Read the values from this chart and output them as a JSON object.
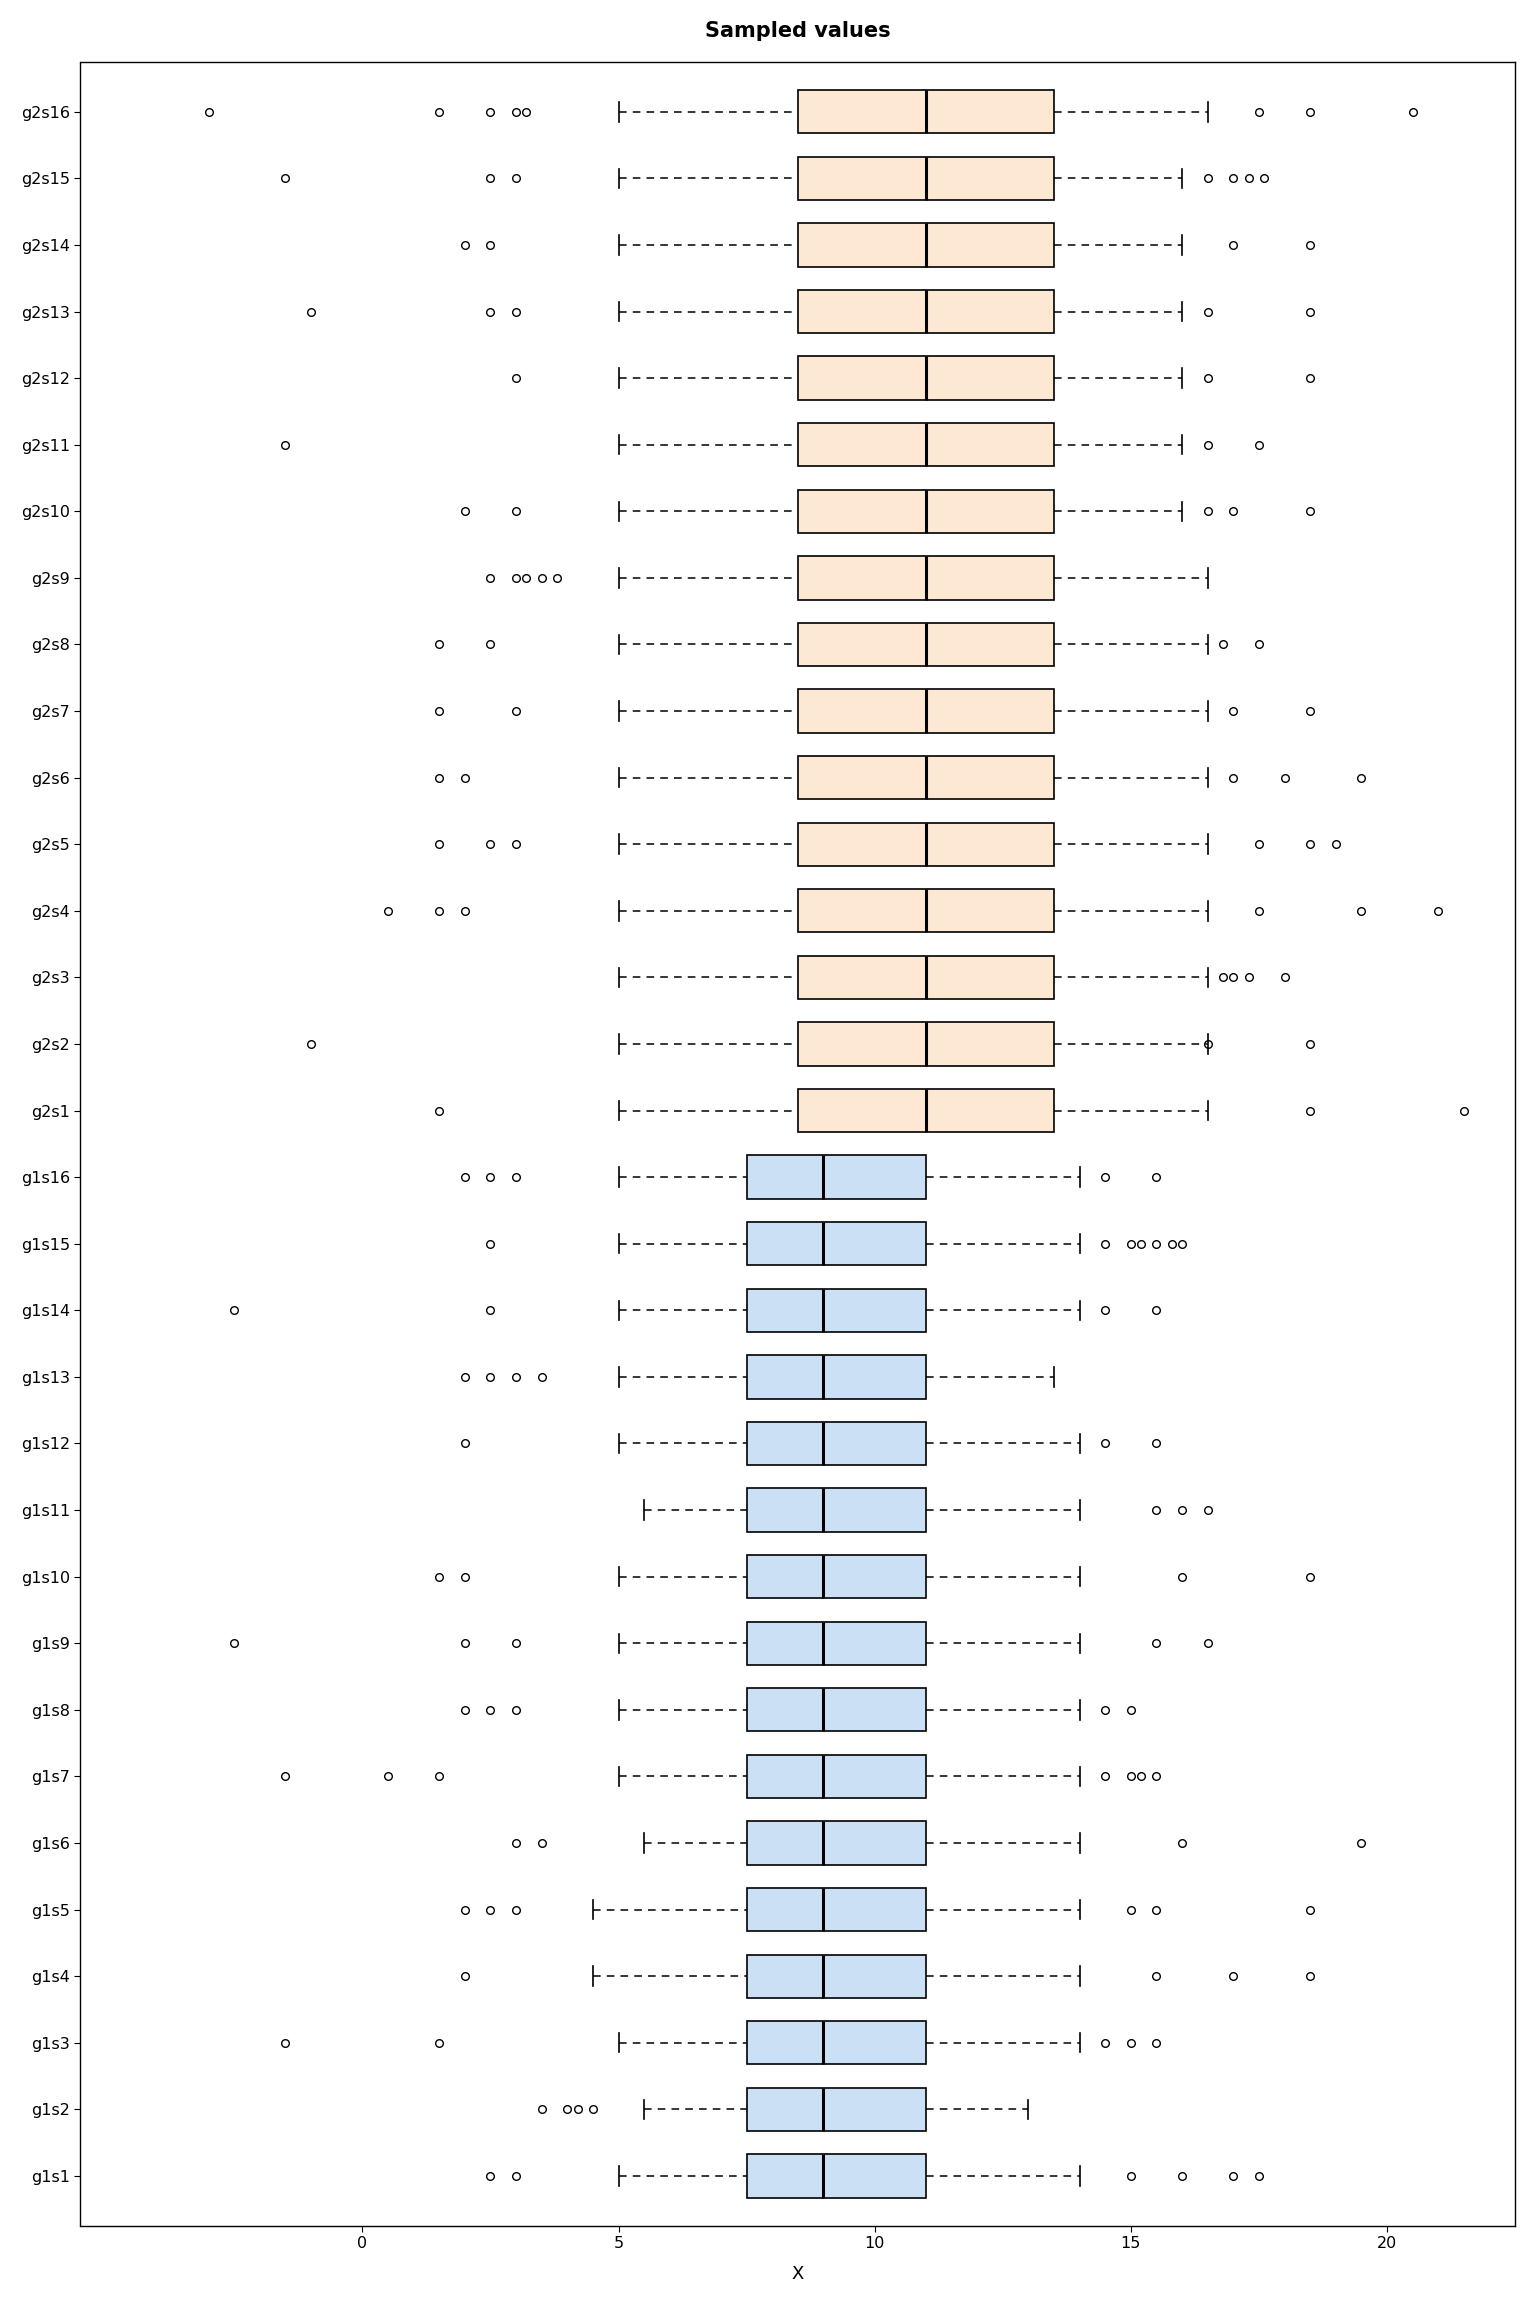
{
  "title": "Sampled values",
  "xlabel": "X",
  "background_color": "#ffffff",
  "g1_color": "#cce0f5",
  "g2_color": "#fde8d4",
  "edge_color": "#000000",
  "median_color": "#000000",
  "whisker_color": "#000000",
  "flier_color": "#000000",
  "xlim_left": -5.5,
  "xlim_right": 22.5,
  "xticks": [
    0,
    5,
    10,
    15,
    20
  ],
  "groups": [
    {
      "name": "g2s16",
      "q1": 8.5,
      "median": 11.0,
      "q3": 13.5,
      "whisker_low": 5.0,
      "whisker_high": 16.5,
      "outliers_lo": [
        -3.0,
        1.5,
        2.5,
        3.0,
        3.2
      ],
      "outliers_hi": [
        17.5,
        18.5,
        20.5
      ]
    },
    {
      "name": "g2s15",
      "q1": 8.5,
      "median": 11.0,
      "q3": 13.5,
      "whisker_low": 5.0,
      "whisker_high": 16.0,
      "outliers_lo": [
        -1.5,
        2.5,
        3.0
      ],
      "outliers_hi": [
        16.5,
        17.0,
        17.3,
        17.6
      ]
    },
    {
      "name": "g2s14",
      "q1": 8.5,
      "median": 11.0,
      "q3": 13.5,
      "whisker_low": 5.0,
      "whisker_high": 16.0,
      "outliers_lo": [
        2.0,
        2.5
      ],
      "outliers_hi": [
        17.0,
        18.5
      ]
    },
    {
      "name": "g2s13",
      "q1": 8.5,
      "median": 11.0,
      "q3": 13.5,
      "whisker_low": 5.0,
      "whisker_high": 16.0,
      "outliers_lo": [
        -1.0,
        2.5,
        3.0
      ],
      "outliers_hi": [
        16.5,
        18.5
      ]
    },
    {
      "name": "g2s12",
      "q1": 8.5,
      "median": 11.0,
      "q3": 13.5,
      "whisker_low": 5.0,
      "whisker_high": 16.0,
      "outliers_lo": [
        3.0
      ],
      "outliers_hi": [
        16.5,
        18.5
      ]
    },
    {
      "name": "g2s11",
      "q1": 8.5,
      "median": 11.0,
      "q3": 13.5,
      "whisker_low": 5.0,
      "whisker_high": 16.0,
      "outliers_lo": [
        -1.5
      ],
      "outliers_hi": [
        16.5,
        17.5
      ]
    },
    {
      "name": "g2s10",
      "q1": 8.5,
      "median": 11.0,
      "q3": 13.5,
      "whisker_low": 5.0,
      "whisker_high": 16.0,
      "outliers_lo": [
        2.0,
        3.0
      ],
      "outliers_hi": [
        16.5,
        17.0,
        18.5
      ]
    },
    {
      "name": "g2s9",
      "q1": 8.5,
      "median": 11.0,
      "q3": 13.5,
      "whisker_low": 5.0,
      "whisker_high": 16.5,
      "outliers_lo": [
        2.5,
        3.0,
        3.2,
        3.5,
        3.8
      ],
      "outliers_hi": []
    },
    {
      "name": "g2s8",
      "q1": 8.5,
      "median": 11.0,
      "q3": 13.5,
      "whisker_low": 5.0,
      "whisker_high": 16.5,
      "outliers_lo": [
        1.5,
        2.5
      ],
      "outliers_hi": [
        16.8,
        17.5
      ]
    },
    {
      "name": "g2s7",
      "q1": 8.5,
      "median": 11.0,
      "q3": 13.5,
      "whisker_low": 5.0,
      "whisker_high": 16.5,
      "outliers_lo": [
        1.5,
        3.0
      ],
      "outliers_hi": [
        17.0,
        18.5
      ]
    },
    {
      "name": "g2s6",
      "q1": 8.5,
      "median": 11.0,
      "q3": 13.5,
      "whisker_low": 5.0,
      "whisker_high": 16.5,
      "outliers_lo": [
        1.5,
        2.0
      ],
      "outliers_hi": [
        17.0,
        18.0,
        19.5
      ]
    },
    {
      "name": "g2s5",
      "q1": 8.5,
      "median": 11.0,
      "q3": 13.5,
      "whisker_low": 5.0,
      "whisker_high": 16.5,
      "outliers_lo": [
        1.5,
        2.5,
        3.0
      ],
      "outliers_hi": [
        17.5,
        18.5,
        19.0
      ]
    },
    {
      "name": "g2s4",
      "q1": 8.5,
      "median": 11.0,
      "q3": 13.5,
      "whisker_low": 5.0,
      "whisker_high": 16.5,
      "outliers_lo": [
        0.5,
        1.5,
        2.0
      ],
      "outliers_hi": [
        17.5,
        19.5,
        21.0
      ]
    },
    {
      "name": "g2s3",
      "q1": 8.5,
      "median": 11.0,
      "q3": 13.5,
      "whisker_low": 5.0,
      "whisker_high": 16.5,
      "outliers_lo": [],
      "outliers_hi": [
        16.8,
        17.0,
        17.3,
        18.0
      ]
    },
    {
      "name": "g2s2",
      "q1": 8.5,
      "median": 11.0,
      "q3": 13.5,
      "whisker_low": 5.0,
      "whisker_high": 16.5,
      "outliers_lo": [
        -1.0
      ],
      "outliers_hi": [
        16.5,
        18.5
      ]
    },
    {
      "name": "g2s1",
      "q1": 8.5,
      "median": 11.0,
      "q3": 13.5,
      "whisker_low": 5.0,
      "whisker_high": 16.5,
      "outliers_lo": [
        1.5
      ],
      "outliers_hi": [
        18.5,
        21.5
      ]
    },
    {
      "name": "g1s16",
      "q1": 7.5,
      "median": 9.0,
      "q3": 11.0,
      "whisker_low": 5.0,
      "whisker_high": 14.0,
      "outliers_lo": [
        2.0,
        2.5,
        3.0
      ],
      "outliers_hi": [
        14.5,
        15.5
      ]
    },
    {
      "name": "g1s15",
      "q1": 7.5,
      "median": 9.0,
      "q3": 11.0,
      "whisker_low": 5.0,
      "whisker_high": 14.0,
      "outliers_lo": [
        2.5
      ],
      "outliers_hi": [
        14.5,
        15.0,
        15.2,
        15.5,
        15.8,
        16.0
      ]
    },
    {
      "name": "g1s14",
      "q1": 7.5,
      "median": 9.0,
      "q3": 11.0,
      "whisker_low": 5.0,
      "whisker_high": 14.0,
      "outliers_lo": [
        -2.5,
        2.5
      ],
      "outliers_hi": [
        14.5,
        15.5
      ]
    },
    {
      "name": "g1s13",
      "q1": 7.5,
      "median": 9.0,
      "q3": 11.0,
      "whisker_low": 5.0,
      "whisker_high": 13.5,
      "outliers_lo": [
        2.0,
        2.5,
        3.0,
        3.5
      ],
      "outliers_hi": []
    },
    {
      "name": "g1s12",
      "q1": 7.5,
      "median": 9.0,
      "q3": 11.0,
      "whisker_low": 5.0,
      "whisker_high": 14.0,
      "outliers_lo": [
        2.0
      ],
      "outliers_hi": [
        14.5,
        15.5
      ]
    },
    {
      "name": "g1s11",
      "q1": 7.5,
      "median": 9.0,
      "q3": 11.0,
      "whisker_low": 5.5,
      "whisker_high": 14.0,
      "outliers_lo": [],
      "outliers_hi": [
        15.5,
        16.0,
        16.5
      ]
    },
    {
      "name": "g1s10",
      "q1": 7.5,
      "median": 9.0,
      "q3": 11.0,
      "whisker_low": 5.0,
      "whisker_high": 14.0,
      "outliers_lo": [
        1.5,
        2.0
      ],
      "outliers_hi": [
        16.0,
        18.5
      ]
    },
    {
      "name": "g1s9",
      "q1": 7.5,
      "median": 9.0,
      "q3": 11.0,
      "whisker_low": 5.0,
      "whisker_high": 14.0,
      "outliers_lo": [
        -2.5,
        2.0,
        3.0
      ],
      "outliers_hi": [
        15.5,
        16.5
      ]
    },
    {
      "name": "g1s8",
      "q1": 7.5,
      "median": 9.0,
      "q3": 11.0,
      "whisker_low": 5.0,
      "whisker_high": 14.0,
      "outliers_lo": [
        2.0,
        2.5,
        3.0
      ],
      "outliers_hi": [
        14.5,
        15.0
      ]
    },
    {
      "name": "g1s7",
      "q1": 7.5,
      "median": 9.0,
      "q3": 11.0,
      "whisker_low": 5.0,
      "whisker_high": 14.0,
      "outliers_lo": [
        -1.5,
        0.5,
        1.5
      ],
      "outliers_hi": [
        14.5,
        15.0,
        15.2,
        15.5
      ]
    },
    {
      "name": "g1s6",
      "q1": 7.5,
      "median": 9.0,
      "q3": 11.0,
      "whisker_low": 5.5,
      "whisker_high": 14.0,
      "outliers_lo": [
        3.0,
        3.5
      ],
      "outliers_hi": [
        16.0,
        19.5
      ]
    },
    {
      "name": "g1s5",
      "q1": 7.5,
      "median": 9.0,
      "q3": 11.0,
      "whisker_low": 4.5,
      "whisker_high": 14.0,
      "outliers_lo": [
        2.0,
        2.5,
        3.0
      ],
      "outliers_hi": [
        15.0,
        15.5,
        18.5
      ]
    },
    {
      "name": "g1s4",
      "q1": 7.5,
      "median": 9.0,
      "q3": 11.0,
      "whisker_low": 4.5,
      "whisker_high": 14.0,
      "outliers_lo": [
        2.0
      ],
      "outliers_hi": [
        15.5,
        17.0,
        18.5
      ]
    },
    {
      "name": "g1s3",
      "q1": 7.5,
      "median": 9.0,
      "q3": 11.0,
      "whisker_low": 5.0,
      "whisker_high": 14.0,
      "outliers_lo": [
        -1.5,
        1.5
      ],
      "outliers_hi": [
        14.5,
        15.0,
        15.5
      ]
    },
    {
      "name": "g1s2",
      "q1": 7.5,
      "median": 9.0,
      "q3": 11.0,
      "whisker_low": 5.5,
      "whisker_high": 13.0,
      "outliers_lo": [
        3.5,
        4.0,
        4.2,
        4.5
      ],
      "outliers_hi": []
    },
    {
      "name": "g1s1",
      "q1": 7.5,
      "median": 9.0,
      "q3": 11.0,
      "whisker_low": 5.0,
      "whisker_high": 14.0,
      "outliers_lo": [
        2.5,
        3.0
      ],
      "outliers_hi": [
        15.0,
        16.0,
        17.0,
        17.5
      ]
    }
  ]
}
